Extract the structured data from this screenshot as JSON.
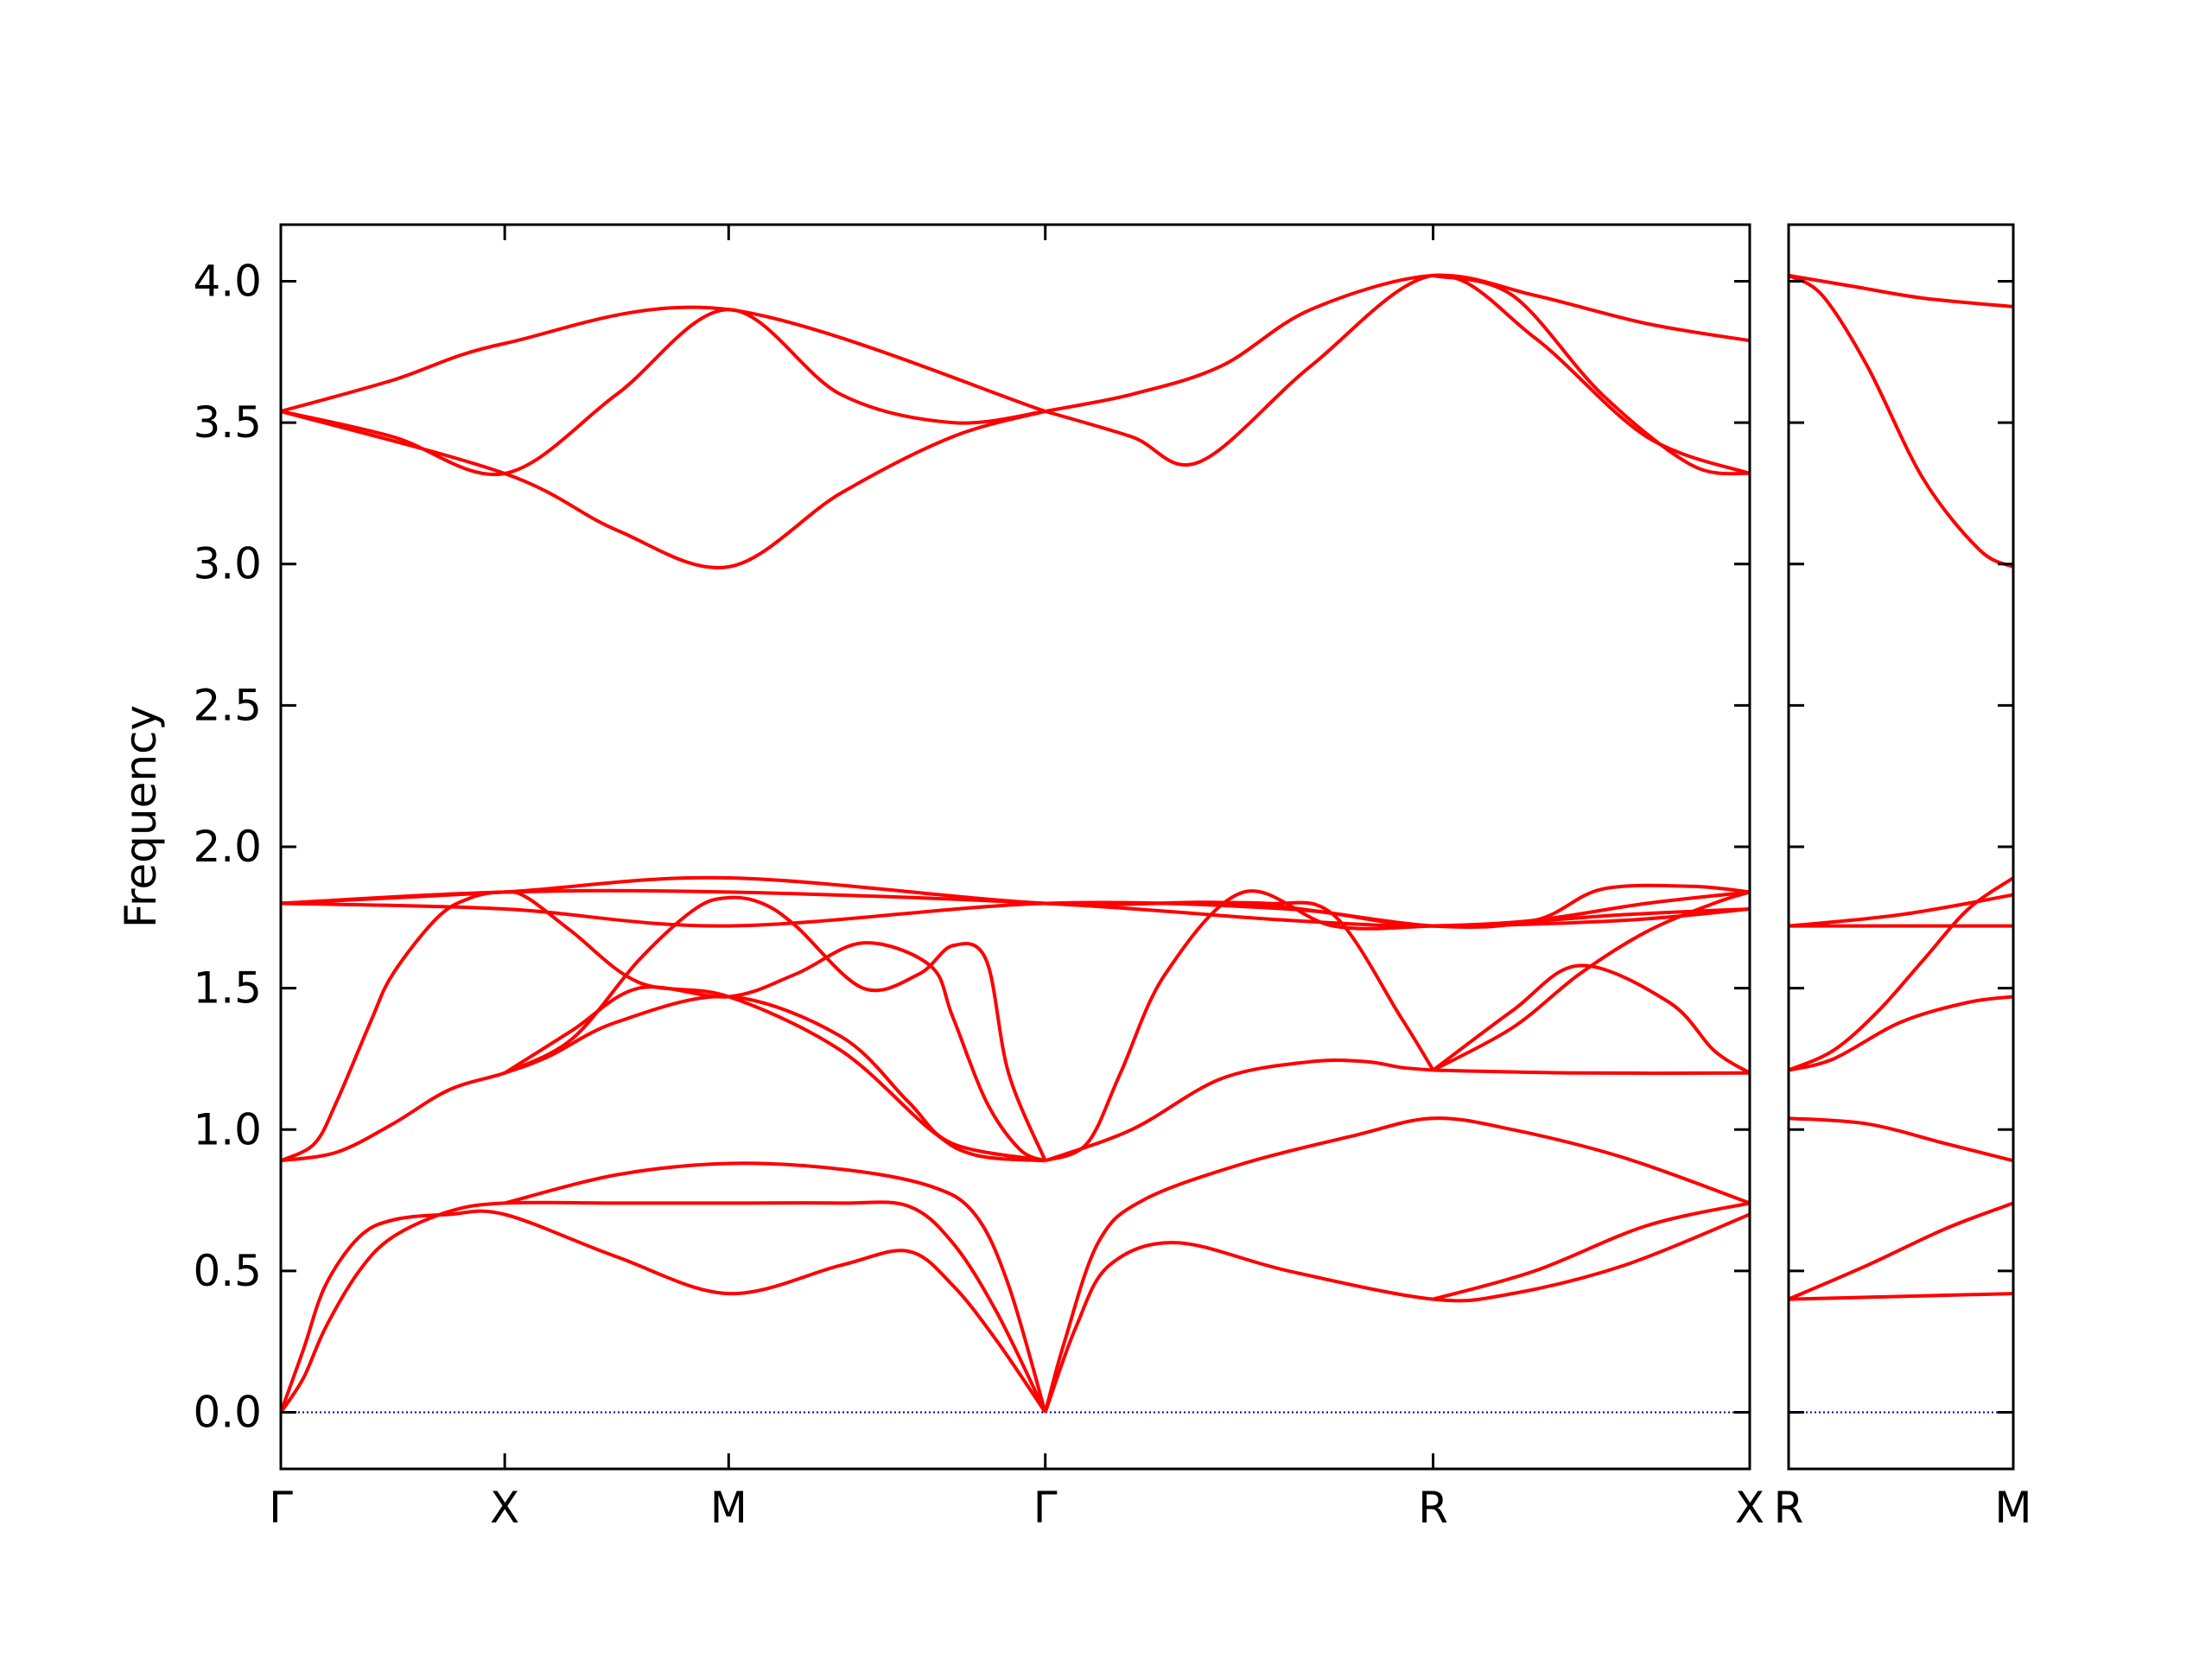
{
  "chart_data": {
    "type": "line",
    "ylabel": "Frequency",
    "ylim": [
      -0.2,
      4.2
    ],
    "yticks": [
      "0.0",
      "0.5",
      "1.0",
      "1.5",
      "2.0",
      "2.5",
      "3.0",
      "3.5",
      "4.0"
    ],
    "line_color": "#ff0000",
    "zero_line_color": "#00008b",
    "ticks_direction": "in",
    "grid": false,
    "panels": [
      {
        "x_range": [
          0,
          6.5
        ],
        "ticks": [
          {
            "x": 0,
            "label": "Γ"
          },
          {
            "x": 1,
            "label": "X"
          },
          {
            "x": 2,
            "label": "M"
          },
          {
            "x": 3.414,
            "label": "Γ"
          },
          {
            "x": 5.146,
            "label": "R"
          },
          {
            "x": 6.56,
            "label": "X"
          }
        ],
        "series": [
          {
            "x": [
              0,
              0.1,
              0.2,
              0.35,
              0.5,
              0.75,
              1,
              1.5,
              2,
              2.5,
              2.8,
              3,
              3.2,
              3.414
            ],
            "y": [
              0,
              0.22,
              0.45,
              0.62,
              0.68,
              0.7,
              0.7,
              0.55,
              0.42,
              0.52,
              0.57,
              0.45,
              0.25,
              0
            ]
          },
          {
            "x": [
              0,
              0.1,
              0.2,
              0.35,
              0.5,
              0.75,
              1,
              1.5,
              2,
              2.5,
              2.8,
              3,
              3.2,
              3.414
            ],
            "y": [
              0,
              0.12,
              0.3,
              0.5,
              0.62,
              0.71,
              0.74,
              0.74,
              0.74,
              0.74,
              0.73,
              0.6,
              0.35,
              0
            ]
          },
          {
            "x": [
              1,
              1.5,
              2,
              2.5,
              2.9,
              3.1,
              3.25,
              3.414
            ],
            "y": [
              0.74,
              0.84,
              0.88,
              0.86,
              0.8,
              0.7,
              0.45,
              0
            ]
          },
          {
            "x": [
              3.414,
              3.55,
              3.7,
              4.0,
              4.5,
              5.146,
              5.5,
              6.0,
              6.56
            ],
            "y": [
              0,
              0.3,
              0.52,
              0.6,
              0.5,
              0.4,
              0.42,
              0.52,
              0.7
            ]
          },
          {
            "x": [
              3.414,
              3.5,
              3.65,
              3.85,
              4.3,
              4.8,
              5.146,
              5.5,
              6.0,
              6.56
            ],
            "y": [
              0,
              0.25,
              0.6,
              0.75,
              0.88,
              0.98,
              1.04,
              1.0,
              0.9,
              0.74
            ]
          },
          {
            "x": [
              5.146,
              5.6,
              6.1,
              6.56
            ],
            "y": [
              0.4,
              0.5,
              0.66,
              0.74
            ]
          },
          {
            "x": [
              0,
              0.25,
              0.5,
              0.75,
              1,
              1.2,
              1.5,
              2,
              2.5,
              2.8,
              3.0,
              3.414
            ],
            "y": [
              0.89,
              0.92,
              1.02,
              1.14,
              1.2,
              1.26,
              1.38,
              1.47,
              1.33,
              1.1,
              0.95,
              0.89
            ]
          },
          {
            "x": [
              0,
              0.15,
              0.25,
              0.4,
              0.5,
              0.7,
              0.85,
              1,
              1.1,
              1.3,
              1.6,
              2,
              2.5,
              2.9,
              3.1,
              3.414
            ],
            "y": [
              0.89,
              0.95,
              1.1,
              1.38,
              1.55,
              1.75,
              1.82,
              1.84,
              1.82,
              1.7,
              1.52,
              1.47,
              1.28,
              1.0,
              0.91,
              0.89
            ]
          },
          {
            "x": [
              1,
              1.3,
              1.6,
              1.85,
              2,
              2.15,
              2.3,
              2.6,
              2.85,
              3.0,
              3.15,
              3.25,
              3.414
            ],
            "y": [
              1.2,
              1.32,
              1.6,
              1.78,
              1.82,
              1.8,
              1.72,
              1.5,
              1.55,
              1.65,
              1.6,
              1.2,
              0.89
            ]
          },
          {
            "x": [
              1,
              1.3,
              1.6,
              2,
              2.3,
              2.6,
              2.9,
              3.0,
              3.15,
              3.3,
              3.414
            ],
            "y": [
              1.2,
              1.35,
              1.5,
              1.47,
              1.55,
              1.66,
              1.58,
              1.4,
              1.1,
              0.93,
              0.89
            ]
          },
          {
            "x": [
              3.414,
              3.6,
              3.75,
              3.95,
              4.3,
              4.7,
              5.146,
              5.6,
              6.1,
              6.56
            ],
            "y": [
              0.89,
              0.95,
              1.2,
              1.55,
              1.84,
              1.72,
              1.72,
              1.74,
              1.8,
              1.84
            ]
          },
          {
            "x": [
              3.414,
              3.8,
              4.2,
              4.6,
              4.85,
              5.0,
              5.146
            ],
            "y": [
              0.89,
              1.0,
              1.18,
              1.24,
              1.24,
              1.22,
              1.21
            ]
          },
          {
            "x": [
              3.414,
              3.9,
              4.4,
              4.7,
              5.0,
              5.146
            ],
            "y": [
              1.8,
              1.8,
              1.8,
              1.76,
              1.4,
              1.21
            ]
          },
          {
            "x": [
              5.146,
              5.5,
              5.8,
              6.2,
              6.4,
              6.56
            ],
            "y": [
              1.21,
              1.42,
              1.58,
              1.45,
              1.28,
              1.2
            ]
          },
          {
            "x": [
              5.146,
              5.5,
              5.8,
              6.1,
              6.4,
              6.56
            ],
            "y": [
              1.21,
              1.36,
              1.55,
              1.7,
              1.8,
              1.84
            ]
          },
          {
            "x": [
              5.146,
              5.8,
              6.56
            ],
            "y": [
              1.21,
              1.2,
              1.2
            ]
          },
          {
            "x": [
              0,
              1,
              2,
              3.414,
              4.3,
              5.146,
              5.6,
              5.9,
              6.3,
              6.56
            ],
            "y": [
              1.8,
              1.84,
              1.89,
              1.8,
              1.8,
              1.72,
              1.74,
              1.85,
              1.86,
              1.84
            ]
          },
          {
            "x": [
              0,
              1,
              2,
              3.414,
              4.5,
              5.146,
              6.0,
              6.56
            ],
            "y": [
              1.8,
              1.84,
              1.84,
              1.8,
              1.74,
              1.72,
              1.74,
              1.78
            ]
          },
          {
            "x": [
              0,
              1,
              2,
              3.414,
              4.5,
              5.146,
              6.0,
              6.56
            ],
            "y": [
              1.8,
              1.78,
              1.72,
              1.8,
              1.78,
              1.72,
              1.76,
              1.78
            ]
          },
          {
            "x": [
              0,
              0.5,
              1,
              2,
              3.414
            ],
            "y": [
              3.54,
              3.65,
              3.78,
              3.9,
              3.54
            ]
          },
          {
            "x": [
              0,
              0.5,
              1,
              1.5,
              2,
              2.5,
              3.0,
              3.414
            ],
            "y": [
              3.54,
              3.45,
              3.32,
              3.6,
              3.9,
              3.6,
              3.5,
              3.54
            ]
          },
          {
            "x": [
              0,
              1,
              1.5,
              2,
              2.5,
              3.0,
              3.414
            ],
            "y": [
              3.54,
              3.32,
              3.12,
              2.99,
              3.25,
              3.45,
              3.54
            ]
          },
          {
            "x": [
              3.414,
              3.8,
              4.2,
              4.6,
              5.146,
              5.6,
              6.1,
              6.56
            ],
            "y": [
              3.54,
              3.6,
              3.7,
              3.9,
              4.02,
              3.95,
              3.85,
              3.79
            ]
          },
          {
            "x": [
              3.414,
              3.8,
              4.1,
              4.6,
              5.146,
              5.6,
              6.1,
              6.56
            ],
            "y": [
              3.54,
              3.45,
              3.36,
              3.7,
              4.02,
              3.8,
              3.45,
              3.32
            ]
          },
          {
            "x": [
              5.146,
              5.5,
              5.9,
              6.3,
              6.56
            ],
            "y": [
              4.02,
              3.95,
              3.6,
              3.35,
              3.32
            ]
          }
        ]
      },
      {
        "x_range": [
          0,
          1
        ],
        "ticks": [
          {
            "x": 0,
            "label": "R"
          },
          {
            "x": 1,
            "label": "M"
          }
        ],
        "series": [
          {
            "x": [
              0,
              1
            ],
            "y": [
              0.4,
              0.42
            ]
          },
          {
            "x": [
              0,
              0.35,
              0.7,
              1
            ],
            "y": [
              0.4,
              0.52,
              0.65,
              0.74
            ]
          },
          {
            "x": [
              0,
              0.35,
              0.7,
              1
            ],
            "y": [
              1.04,
              1.02,
              0.95,
              0.89
            ]
          },
          {
            "x": [
              0,
              0.2,
              0.5,
              0.8,
              1
            ],
            "y": [
              1.21,
              1.25,
              1.38,
              1.45,
              1.47
            ]
          },
          {
            "x": [
              0,
              0.2,
              0.4,
              0.6,
              0.8,
              1
            ],
            "y": [
              1.21,
              1.28,
              1.42,
              1.6,
              1.78,
              1.89
            ]
          },
          {
            "x": [
              0,
              0.5,
              1
            ],
            "y": [
              1.72,
              1.76,
              1.83
            ]
          },
          {
            "x": [
              0,
              1
            ],
            "y": [
              1.72,
              1.72
            ]
          },
          {
            "x": [
              0,
              0.3,
              0.6,
              1
            ],
            "y": [
              4.02,
              3.98,
              3.94,
              3.91
            ]
          },
          {
            "x": [
              0,
              0.15,
              0.35,
              0.6,
              0.85,
              1
            ],
            "y": [
              4.02,
              3.95,
              3.7,
              3.3,
              3.05,
              2.99
            ]
          }
        ]
      }
    ]
  }
}
